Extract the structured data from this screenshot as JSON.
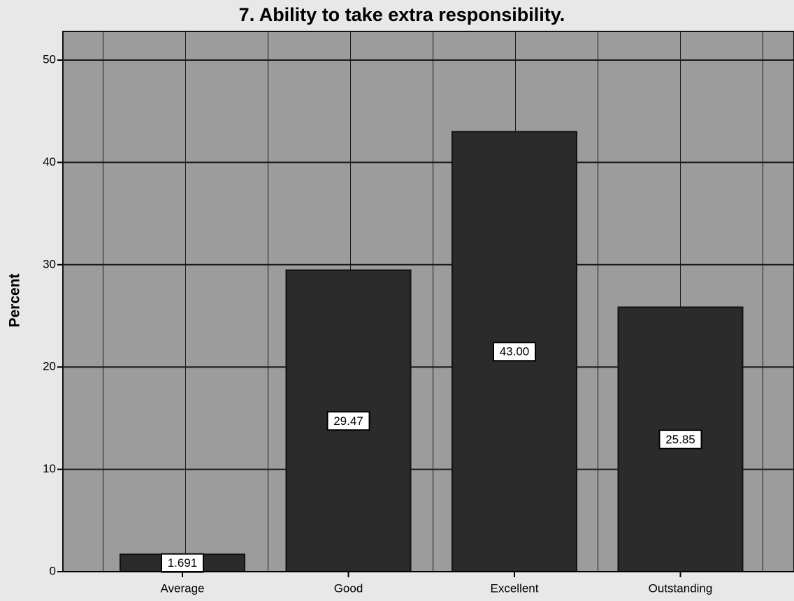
{
  "chart_data": {
    "type": "bar",
    "title": "7. Ability to take extra responsibility.",
    "y_label": "Percent",
    "categories": [
      "Average",
      "Good",
      "Excellent",
      "Outstanding"
    ],
    "values": [
      1.691,
      29.47,
      43.0,
      25.85
    ],
    "value_labels": [
      "1.691",
      "29.47",
      "43.00",
      "25.85"
    ],
    "color": "#2b2b2b",
    "ylim": [
      0,
      52.8
    ],
    "yticks": [
      0,
      10,
      20,
      30,
      40,
      50
    ],
    "grid": true
  }
}
